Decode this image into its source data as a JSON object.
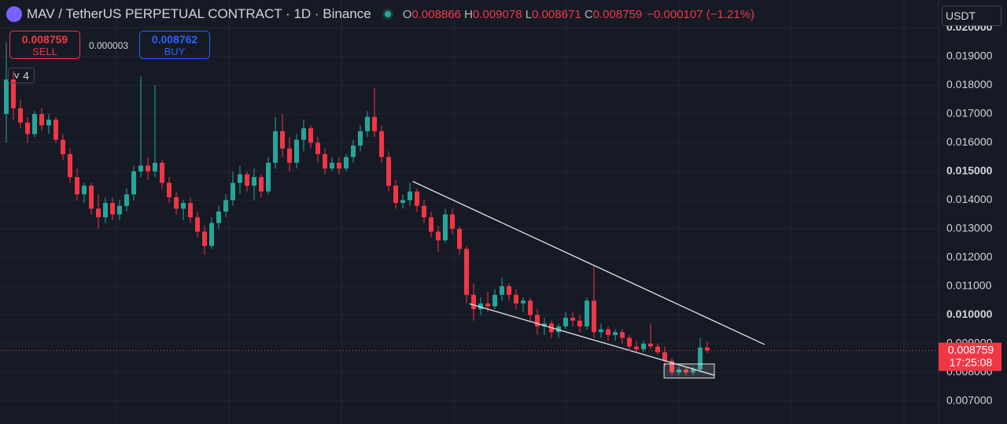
{
  "chart_data": {
    "type": "candlestick",
    "title": "MAV / TetherUS PERPETUAL CONTRACT · 1D · Binance",
    "legend": [
      {
        "key": "O",
        "value": 0.008866
      },
      {
        "key": "H",
        "value": 0.009078
      },
      {
        "key": "L",
        "value": 0.008671
      },
      {
        "key": "C",
        "value": 0.008759
      }
    ],
    "change": "−0.000107 (−1.21%)",
    "sell": {
      "price": 0.008759,
      "label": "SELL"
    },
    "buy": {
      "price": 0.008762,
      "label": "BUY"
    },
    "spread": 3e-06,
    "indicators": "4",
    "currency": "USDT",
    "last_price": 0.008759,
    "countdown": "17:25:08",
    "up_color": "#26a69a",
    "down_color": "#f23645",
    "ylim": [
      0.0062,
      0.02097
    ],
    "yticks": [
      {
        "value": 0.007,
        "label": "0.007000"
      },
      {
        "value": 0.008,
        "label": "0.008000"
      },
      {
        "value": 0.009,
        "label": "0.009000"
      },
      {
        "value": 0.01,
        "label": "0.010000"
      },
      {
        "value": 0.011,
        "label": "0.011000"
      },
      {
        "value": 0.012,
        "label": "0.012000"
      },
      {
        "value": 0.013,
        "label": "0.013000"
      },
      {
        "value": 0.014,
        "label": "0.014000"
      },
      {
        "value": 0.015,
        "label": "0.015000"
      },
      {
        "value": 0.016,
        "label": "0.016000"
      },
      {
        "value": 0.017,
        "label": "0.017000"
      },
      {
        "value": 0.018,
        "label": "0.018000"
      },
      {
        "value": 0.019,
        "label": "0.019000"
      },
      {
        "value": 0.02,
        "label": "0.020000"
      }
    ],
    "grid": true,
    "ohlc": [
      [
        0.017,
        0.0195,
        0.016,
        0.0182
      ],
      [
        0.0182,
        0.0185,
        0.0168,
        0.0172
      ],
      [
        0.0172,
        0.0175,
        0.0165,
        0.0167
      ],
      [
        0.0167,
        0.0169,
        0.016,
        0.0163
      ],
      [
        0.0163,
        0.0171,
        0.0162,
        0.017
      ],
      [
        0.017,
        0.0172,
        0.0164,
        0.0166
      ],
      [
        0.0166,
        0.017,
        0.0163,
        0.0168
      ],
      [
        0.0168,
        0.0169,
        0.016,
        0.0161
      ],
      [
        0.0161,
        0.0163,
        0.0154,
        0.0156
      ],
      [
        0.0156,
        0.0158,
        0.0146,
        0.0148
      ],
      [
        0.0148,
        0.0151,
        0.014,
        0.0142
      ],
      [
        0.0142,
        0.0146,
        0.0139,
        0.0145
      ],
      [
        0.0145,
        0.0146,
        0.0135,
        0.0137
      ],
      [
        0.0137,
        0.0142,
        0.013,
        0.0134
      ],
      [
        0.0134,
        0.0141,
        0.0132,
        0.0139
      ],
      [
        0.0139,
        0.0141,
        0.0133,
        0.0135
      ],
      [
        0.0135,
        0.014,
        0.0133,
        0.0138
      ],
      [
        0.0138,
        0.0144,
        0.0136,
        0.0142
      ],
      [
        0.0142,
        0.0152,
        0.014,
        0.015
      ],
      [
        0.015,
        0.0183,
        0.0148,
        0.0152
      ],
      [
        0.0152,
        0.0155,
        0.0147,
        0.015
      ],
      [
        0.015,
        0.018,
        0.0148,
        0.0153
      ],
      [
        0.0153,
        0.0154,
        0.0144,
        0.0146
      ],
      [
        0.0146,
        0.0148,
        0.0139,
        0.0141
      ],
      [
        0.0141,
        0.0143,
        0.0135,
        0.0137
      ],
      [
        0.0137,
        0.014,
        0.0133,
        0.0139
      ],
      [
        0.0139,
        0.0141,
        0.0132,
        0.0134
      ],
      [
        0.0134,
        0.0136,
        0.0127,
        0.0129
      ],
      [
        0.0129,
        0.0131,
        0.0121,
        0.0124
      ],
      [
        0.0124,
        0.0134,
        0.0123,
        0.0132
      ],
      [
        0.0132,
        0.0138,
        0.013,
        0.0136
      ],
      [
        0.0136,
        0.0142,
        0.0134,
        0.014
      ],
      [
        0.014,
        0.015,
        0.0138,
        0.0146
      ],
      [
        0.0146,
        0.0152,
        0.0142,
        0.0149
      ],
      [
        0.0149,
        0.015,
        0.0143,
        0.0145
      ],
      [
        0.0145,
        0.0151,
        0.014,
        0.0148
      ],
      [
        0.0148,
        0.0149,
        0.0141,
        0.0143
      ],
      [
        0.0143,
        0.0155,
        0.0142,
        0.0153
      ],
      [
        0.0153,
        0.0169,
        0.0151,
        0.0164
      ],
      [
        0.0164,
        0.017,
        0.0155,
        0.0158
      ],
      [
        0.0158,
        0.0162,
        0.015,
        0.0153
      ],
      [
        0.0153,
        0.0163,
        0.0151,
        0.0161
      ],
      [
        0.0161,
        0.0168,
        0.0157,
        0.0165
      ],
      [
        0.0165,
        0.0166,
        0.0158,
        0.016
      ],
      [
        0.016,
        0.0162,
        0.0153,
        0.0156
      ],
      [
        0.0156,
        0.0158,
        0.0149,
        0.0151
      ],
      [
        0.0151,
        0.0155,
        0.015,
        0.0153
      ],
      [
        0.0153,
        0.0155,
        0.0149,
        0.0151
      ],
      [
        0.0151,
        0.0156,
        0.015,
        0.0155
      ],
      [
        0.0155,
        0.0161,
        0.0153,
        0.0159
      ],
      [
        0.0159,
        0.0166,
        0.0157,
        0.0164
      ],
      [
        0.0164,
        0.0171,
        0.0162,
        0.0169
      ],
      [
        0.0169,
        0.0179,
        0.0162,
        0.0164
      ],
      [
        0.0164,
        0.0166,
        0.0153,
        0.0155
      ],
      [
        0.0155,
        0.0157,
        0.0143,
        0.0145
      ],
      [
        0.0145,
        0.0147,
        0.0137,
        0.0139
      ],
      [
        0.0139,
        0.0142,
        0.0137,
        0.014
      ],
      [
        0.014,
        0.0146,
        0.0138,
        0.0143
      ],
      [
        0.0143,
        0.0144,
        0.0136,
        0.0138
      ],
      [
        0.0138,
        0.014,
        0.0132,
        0.0134
      ],
      [
        0.0134,
        0.0136,
        0.0127,
        0.0129
      ],
      [
        0.0129,
        0.0131,
        0.0122,
        0.0126
      ],
      [
        0.0126,
        0.0137,
        0.0125,
        0.0135
      ],
      [
        0.0135,
        0.0137,
        0.0128,
        0.013
      ],
      [
        0.013,
        0.0131,
        0.0121,
        0.0123
      ],
      [
        0.0123,
        0.0124,
        0.0104,
        0.0107
      ],
      [
        0.0107,
        0.0111,
        0.0098,
        0.0102
      ],
      [
        0.0102,
        0.0106,
        0.01,
        0.0104
      ],
      [
        0.0104,
        0.0108,
        0.0101,
        0.0103
      ],
      [
        0.0103,
        0.0109,
        0.0102,
        0.0107
      ],
      [
        0.0107,
        0.0113,
        0.0105,
        0.011
      ],
      [
        0.011,
        0.0111,
        0.0105,
        0.0107
      ],
      [
        0.0107,
        0.0109,
        0.0102,
        0.0104
      ],
      [
        0.0104,
        0.0106,
        0.0101,
        0.0105
      ],
      [
        0.0105,
        0.0106,
        0.0098,
        0.01
      ],
      [
        0.01,
        0.0102,
        0.0093,
        0.0096
      ],
      [
        0.0096,
        0.0099,
        0.0093,
        0.0097
      ],
      [
        0.0097,
        0.0098,
        0.0092,
        0.0094
      ],
      [
        0.0094,
        0.0097,
        0.0092,
        0.0096
      ],
      [
        0.0096,
        0.0101,
        0.0095,
        0.0099
      ],
      [
        0.0099,
        0.0101,
        0.0096,
        0.0098
      ],
      [
        0.0098,
        0.01,
        0.0094,
        0.0096
      ],
      [
        0.0096,
        0.0106,
        0.0095,
        0.0105
      ],
      [
        0.0105,
        0.0117,
        0.0092,
        0.0094
      ],
      [
        0.0094,
        0.0097,
        0.0092,
        0.0095
      ],
      [
        0.0095,
        0.0096,
        0.0091,
        0.0093
      ],
      [
        0.0093,
        0.0095,
        0.0091,
        0.0094
      ],
      [
        0.0094,
        0.0095,
        0.009,
        0.0092
      ],
      [
        0.0092,
        0.0093,
        0.0088,
        0.0089
      ],
      [
        0.0089,
        0.0091,
        0.0087,
        0.0088
      ],
      [
        0.0088,
        0.0091,
        0.0087,
        0.009
      ],
      [
        0.009,
        0.0097,
        0.0088,
        0.0089
      ],
      [
        0.0089,
        0.009,
        0.0086,
        0.0087
      ],
      [
        0.0087,
        0.0089,
        0.0082,
        0.0084
      ],
      [
        0.0084,
        0.0085,
        0.0079,
        0.008
      ],
      [
        0.008,
        0.0082,
        0.0079,
        0.0081
      ],
      [
        0.0081,
        0.0082,
        0.0079,
        0.008
      ],
      [
        0.008,
        0.0082,
        0.0079,
        0.0081
      ],
      [
        0.0081,
        0.0092,
        0.008,
        0.008866
      ],
      [
        0.008866,
        0.009078,
        0.008671,
        0.008759
      ]
    ],
    "trendlines": [
      {
        "x": [
          57.4,
          107.1
        ],
        "y": [
          0.01465,
          0.00897
        ]
      },
      {
        "x": [
          65.4,
          100
        ],
        "y": [
          0.01039,
          0.0079
        ]
      }
    ],
    "box": {
      "x": [
        92.9,
        100
      ],
      "y": [
        0.00829,
        0.0078
      ]
    }
  }
}
